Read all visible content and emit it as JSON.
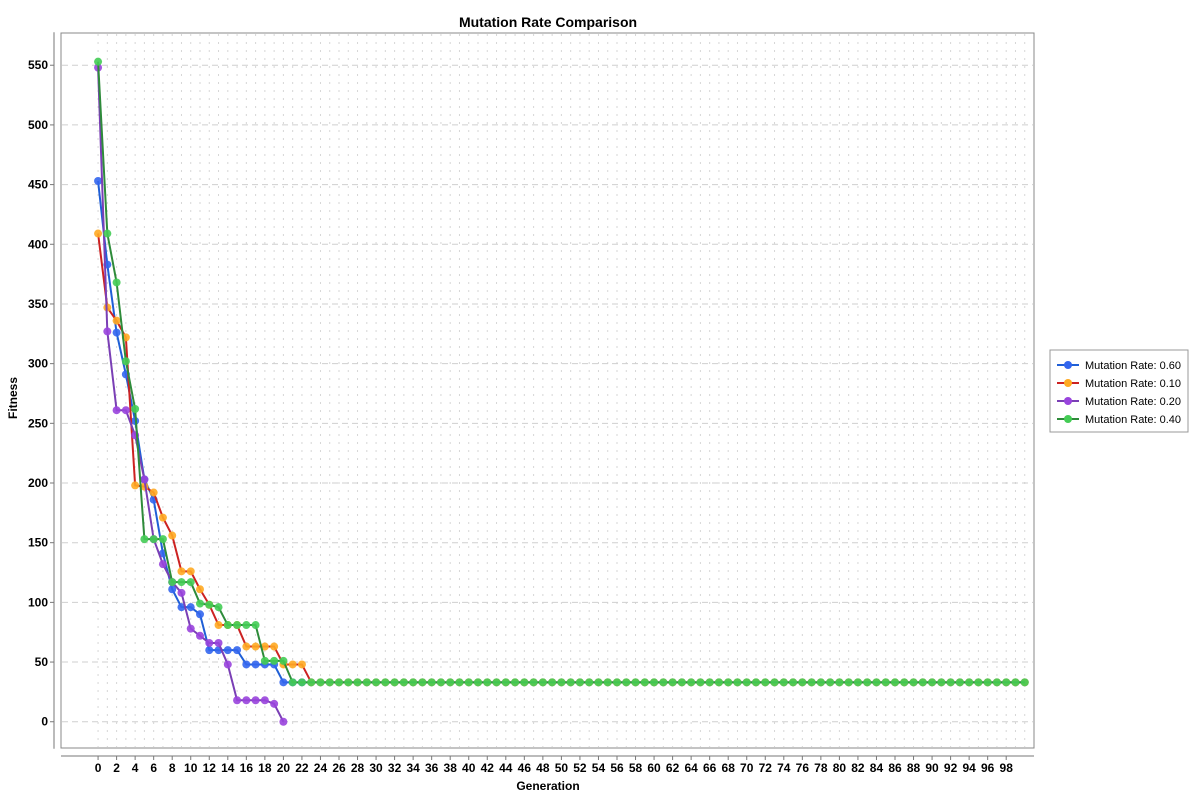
{
  "chart_data": {
    "type": "line",
    "title": "Mutation Rate Comparison",
    "xlabel": "Generation",
    "ylabel": "Fitness",
    "xlim": [
      -4,
      101
    ],
    "ylim": [
      -22,
      577
    ],
    "y_ticks": [
      0,
      50,
      100,
      150,
      200,
      250,
      300,
      350,
      400,
      450,
      500,
      550
    ],
    "x_ticks": [
      0,
      2,
      4,
      6,
      8,
      10,
      12,
      14,
      16,
      18,
      20,
      22,
      24,
      26,
      28,
      30,
      32,
      34,
      36,
      38,
      40,
      42,
      44,
      46,
      48,
      50,
      52,
      54,
      56,
      58,
      60,
      62,
      64,
      66,
      68,
      70,
      72,
      74,
      76,
      78,
      80,
      82,
      84,
      86,
      88,
      90,
      92,
      94,
      96,
      98
    ],
    "grid": true,
    "legend_position": "right",
    "series": [
      {
        "name": "Mutation Rate: 0.60",
        "line_color": "#1f5fd6",
        "marker_color": "#3366ee",
        "x": [
          0,
          1,
          2,
          3,
          4,
          5,
          6,
          7,
          8,
          9,
          10,
          11,
          12,
          13,
          14,
          15,
          16,
          17,
          18,
          19,
          20,
          21,
          22,
          23,
          24,
          25,
          26,
          27,
          28,
          29,
          30,
          31,
          32,
          33,
          34,
          35,
          36,
          37,
          38,
          39,
          40,
          41,
          42,
          43,
          44,
          45,
          46,
          47,
          48,
          49,
          50,
          51,
          52,
          53,
          54,
          55,
          56,
          57,
          58,
          59,
          60,
          61,
          62,
          63,
          64,
          65,
          66,
          67,
          68,
          69,
          70,
          71,
          72,
          73,
          74,
          75,
          76,
          77,
          78,
          79,
          80,
          81,
          82,
          83,
          84,
          85,
          86,
          87,
          88,
          89,
          90,
          91,
          92,
          93,
          94,
          95,
          96,
          97,
          98,
          99,
          100
        ],
        "values": [
          453,
          383,
          326,
          291,
          252,
          203,
          186,
          141,
          111,
          96,
          96,
          90,
          60,
          60,
          60,
          60,
          48,
          48,
          48,
          48,
          33,
          33,
          33,
          33,
          33,
          33,
          33,
          33,
          33,
          33,
          33,
          33,
          33,
          33,
          33,
          33,
          33,
          33,
          33,
          33,
          33,
          33,
          33,
          33,
          33,
          33,
          33,
          33,
          33,
          33,
          33,
          33,
          33,
          33,
          33,
          33,
          33,
          33,
          33,
          33,
          33,
          33,
          33,
          33,
          33,
          33,
          33,
          33,
          33,
          33,
          33,
          33,
          33,
          33,
          33,
          33,
          33,
          33,
          33,
          33,
          33,
          33,
          33,
          33,
          33,
          33,
          33,
          33,
          33,
          33,
          33,
          33,
          33,
          33,
          33,
          33,
          33,
          33,
          33,
          33,
          33
        ]
      },
      {
        "name": "Mutation Rate: 0.10",
        "line_color": "#cc2222",
        "marker_color": "#ffaa22",
        "x": [
          0,
          1,
          2,
          3,
          4,
          5,
          6,
          7,
          8,
          9,
          10,
          11,
          12,
          13,
          14,
          15,
          16,
          17,
          18,
          19,
          20,
          21,
          22,
          23,
          24,
          25,
          26,
          27,
          28,
          29,
          30,
          31,
          32,
          33,
          34,
          35,
          36,
          37,
          38,
          39,
          40,
          41,
          42,
          43,
          44,
          45,
          46,
          47,
          48,
          49,
          50,
          51,
          52,
          53,
          54,
          55,
          56,
          57,
          58,
          59,
          60,
          61,
          62,
          63,
          64,
          65,
          66,
          67,
          68,
          69,
          70,
          71,
          72,
          73,
          74,
          75,
          76,
          77,
          78,
          79,
          80,
          81,
          82,
          83,
          84,
          85,
          86,
          87,
          88,
          89,
          90,
          91,
          92,
          93,
          94,
          95,
          96,
          97,
          98,
          99,
          100
        ],
        "values": [
          409,
          347,
          336,
          322,
          198,
          197,
          192,
          171,
          156,
          126,
          126,
          111,
          98,
          81,
          81,
          81,
          63,
          63,
          63,
          63,
          48,
          48,
          48,
          33,
          33,
          33,
          33,
          33,
          33,
          33,
          33,
          33,
          33,
          33,
          33,
          33,
          33,
          33,
          33,
          33,
          33,
          33,
          33,
          33,
          33,
          33,
          33,
          33,
          33,
          33,
          33,
          33,
          33,
          33,
          33,
          33,
          33,
          33,
          33,
          33,
          33,
          33,
          33,
          33,
          33,
          33,
          33,
          33,
          33,
          33,
          33,
          33,
          33,
          33,
          33,
          33,
          33,
          33,
          33,
          33,
          33,
          33,
          33,
          33,
          33,
          33,
          33,
          33,
          33,
          33,
          33,
          33,
          33,
          33,
          33,
          33,
          33,
          33,
          33,
          33,
          33
        ]
      },
      {
        "name": "Mutation Rate: 0.20",
        "line_color": "#7a3fb5",
        "marker_color": "#9944dd",
        "x": [
          0,
          1,
          2,
          3,
          4,
          5,
          6,
          7,
          8,
          9,
          10,
          11,
          12,
          13,
          14,
          15,
          16,
          17,
          18,
          19,
          20
        ],
        "values": [
          548,
          327,
          261,
          261,
          240,
          203,
          153,
          132,
          117,
          108,
          78,
          72,
          66,
          66,
          48,
          18,
          18,
          18,
          18,
          15,
          0
        ]
      },
      {
        "name": "Mutation Rate: 0.40",
        "line_color": "#2e8b3a",
        "marker_color": "#44cc55",
        "x": [
          0,
          1,
          2,
          3,
          4,
          5,
          6,
          7,
          8,
          9,
          10,
          11,
          12,
          13,
          14,
          15,
          16,
          17,
          18,
          19,
          20,
          21,
          22,
          23,
          24,
          25,
          26,
          27,
          28,
          29,
          30,
          31,
          32,
          33,
          34,
          35,
          36,
          37,
          38,
          39,
          40,
          41,
          42,
          43,
          44,
          45,
          46,
          47,
          48,
          49,
          50,
          51,
          52,
          53,
          54,
          55,
          56,
          57,
          58,
          59,
          60,
          61,
          62,
          63,
          64,
          65,
          66,
          67,
          68,
          69,
          70,
          71,
          72,
          73,
          74,
          75,
          76,
          77,
          78,
          79,
          80,
          81,
          82,
          83,
          84,
          85,
          86,
          87,
          88,
          89,
          90,
          91,
          92,
          93,
          94,
          95,
          96,
          97,
          98,
          99,
          100
        ],
        "values": [
          553,
          409,
          368,
          302,
          262,
          153,
          153,
          153,
          117,
          117,
          117,
          99,
          98,
          96,
          81,
          81,
          81,
          81,
          51,
          51,
          51,
          33,
          33,
          33,
          33,
          33,
          33,
          33,
          33,
          33,
          33,
          33,
          33,
          33,
          33,
          33,
          33,
          33,
          33,
          33,
          33,
          33,
          33,
          33,
          33,
          33,
          33,
          33,
          33,
          33,
          33,
          33,
          33,
          33,
          33,
          33,
          33,
          33,
          33,
          33,
          33,
          33,
          33,
          33,
          33,
          33,
          33,
          33,
          33,
          33,
          33,
          33,
          33,
          33,
          33,
          33,
          33,
          33,
          33,
          33,
          33,
          33,
          33,
          33,
          33,
          33,
          33,
          33,
          33,
          33,
          33,
          33,
          33,
          33,
          33,
          33,
          33,
          33,
          33,
          33,
          33
        ]
      }
    ],
    "legend_order": [
      0,
      1,
      2,
      3
    ],
    "draw_order": [
      0,
      1,
      2,
      3
    ]
  }
}
